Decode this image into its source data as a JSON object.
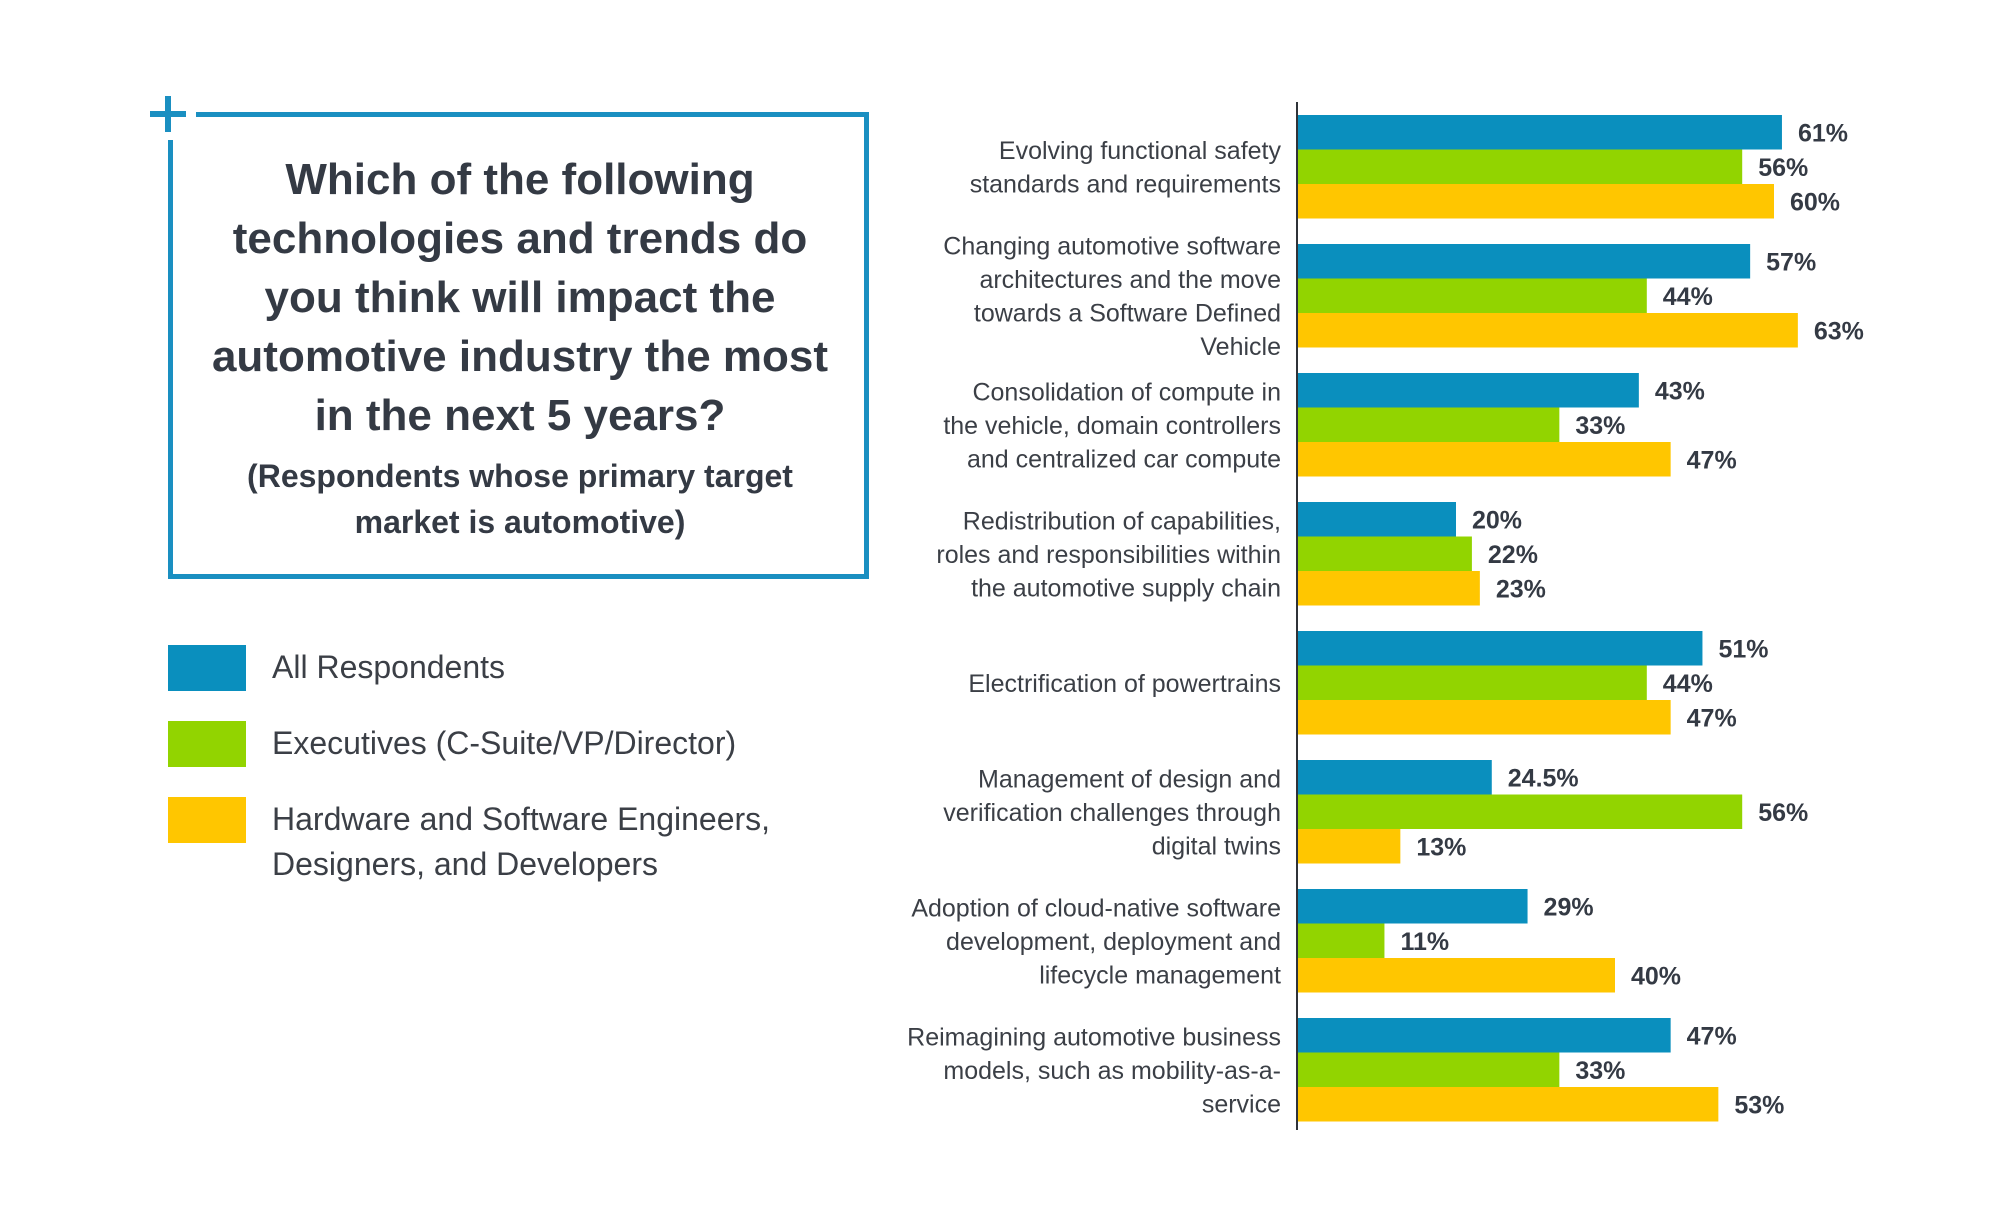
{
  "title": "Which of the following technologies and trends do you think will impact the automotive industry the most in the next 5 years?",
  "subtitle": "(Respondents whose primary target market is automotive)",
  "legend": [
    {
      "label": "All Respondents",
      "color": "#0a8fbe"
    },
    {
      "label": "Executives (C-Suite/VP/Director)",
      "color": "#92d400"
    },
    {
      "label": "Hardware and Software Engineers, Designers, and Developers",
      "color": "#ffc600"
    }
  ],
  "chart_data": {
    "type": "bar",
    "orientation": "horizontal",
    "categories": [
      "Evolving functional safety standards and requirements",
      "Changing automotive software architectures and the move towards a Software Defined Vehicle",
      "Consolidation of compute in the vehicle, domain controllers and centralized car compute",
      "Redistribution of capabilities, roles and responsibilities within the automotive supply chain",
      "Electrification of powertrains",
      "Management of design and verification challenges through digital twins",
      "Adoption of cloud-native software development, deployment and lifecycle management",
      "Reimagining automotive business models, such as mobility-as-a-service"
    ],
    "series": [
      {
        "name": "All Respondents",
        "color": "#0a8fbe",
        "values": [
          61,
          57,
          43,
          20,
          51,
          24.5,
          29,
          47
        ],
        "labels": [
          "61%",
          "57%",
          "43%",
          "20%",
          "51%",
          "24.5%",
          "29%",
          "47%"
        ]
      },
      {
        "name": "Executives (C-Suite/VP/Director)",
        "color": "#92d400",
        "values": [
          56,
          44,
          33,
          22,
          44,
          56,
          11,
          33
        ],
        "labels": [
          "56%",
          "44%",
          "33%",
          "22%",
          "44%",
          "56%",
          "11%",
          "33%"
        ]
      },
      {
        "name": "Hardware and Software Engineers, Designers, and Developers",
        "color": "#ffc600",
        "values": [
          60,
          63,
          47,
          23,
          47,
          13,
          40,
          53
        ],
        "labels": [
          "60%",
          "63%",
          "47%",
          "23%",
          "47%",
          "13%",
          "40%",
          "53%"
        ]
      }
    ],
    "category_lines": [
      [
        "Evolving functional safety",
        "standards and requirements"
      ],
      [
        "Changing automotive software",
        "architectures and the move",
        "towards a Software Defined",
        "Vehicle"
      ],
      [
        "Consolidation of compute in",
        "the vehicle, domain controllers",
        "and centralized car compute"
      ],
      [
        "Redistribution of capabilities,",
        "roles and responsibilities within",
        "the automotive supply chain"
      ],
      [
        "Electrification of powertrains"
      ],
      [
        "Management of design and",
        "verification challenges through",
        "digital twins"
      ],
      [
        "Adoption of cloud-native software",
        "development, deployment and",
        "lifecycle management"
      ],
      [
        "Reimagining automotive business",
        "models, such as mobility-as-a-",
        "service"
      ]
    ],
    "grid": false
  }
}
